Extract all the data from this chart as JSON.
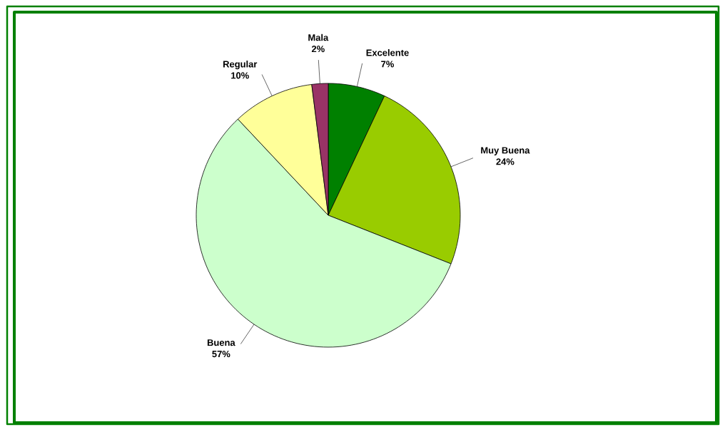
{
  "chart_data": {
    "type": "pie",
    "categories": [
      "Excelente",
      "Muy Buena",
      "Buena",
      "Regular",
      "Mala"
    ],
    "values": [
      7,
      24,
      57,
      10,
      2
    ],
    "colors": [
      "#008000",
      "#99cc00",
      "#ccffcc",
      "#ffff99",
      "#993366"
    ],
    "value_labels": [
      "7%",
      "24%",
      "57%",
      "10%",
      "2%"
    ]
  }
}
